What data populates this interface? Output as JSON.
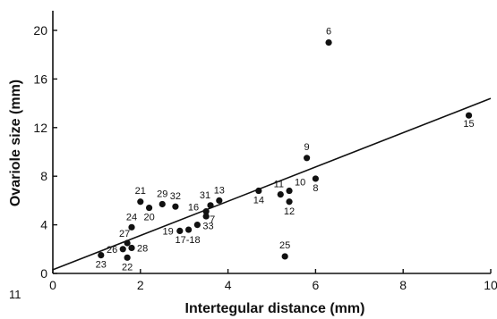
{
  "chart_data": {
    "type": "scatter",
    "title": "",
    "xlabel": "Intertegular distance (mm)",
    "ylabel": "Ovariole size (mm)",
    "xlim": [
      0,
      10
    ],
    "ylim": [
      0,
      22
    ],
    "x_ticks": [
      0,
      2,
      4,
      6,
      8,
      10
    ],
    "y_ticks": [
      0,
      4,
      8,
      12,
      16,
      20
    ],
    "grid": false,
    "legend": "none",
    "corner_label": "11",
    "points": [
      {
        "label": "6",
        "x": 6.3,
        "y": 19.0
      },
      {
        "label": "15",
        "x": 9.5,
        "y": 13.0
      },
      {
        "label": "9",
        "x": 5.8,
        "y": 9.5
      },
      {
        "label": "8",
        "x": 6.0,
        "y": 7.8
      },
      {
        "label": "10",
        "x": 5.4,
        "y": 6.8
      },
      {
        "label": "11",
        "x": 5.2,
        "y": 6.5
      },
      {
        "label": "12",
        "x": 5.4,
        "y": 5.9
      },
      {
        "label": "14",
        "x": 4.7,
        "y": 6.8
      },
      {
        "label": "13",
        "x": 3.8,
        "y": 6.0
      },
      {
        "label": "31",
        "x": 3.6,
        "y": 5.6
      },
      {
        "label": "16",
        "x": 3.5,
        "y": 5.1
      },
      {
        "label": "7",
        "x": 3.5,
        "y": 4.7
      },
      {
        "label": "33",
        "x": 3.3,
        "y": 4.0
      },
      {
        "label": "17-18",
        "x": 3.1,
        "y": 3.6
      },
      {
        "label": "19",
        "x": 2.9,
        "y": 3.5
      },
      {
        "label": "32",
        "x": 2.8,
        "y": 5.5
      },
      {
        "label": "29",
        "x": 2.5,
        "y": 5.7
      },
      {
        "label": "21",
        "x": 2.0,
        "y": 5.9
      },
      {
        "label": "20",
        "x": 2.2,
        "y": 5.4
      },
      {
        "label": "24",
        "x": 1.8,
        "y": 3.8
      },
      {
        "label": "27",
        "x": 1.7,
        "y": 2.5
      },
      {
        "label": "28",
        "x": 1.8,
        "y": 2.1
      },
      {
        "label": "26",
        "x": 1.6,
        "y": 2.0
      },
      {
        "label": "23",
        "x": 1.1,
        "y": 1.5
      },
      {
        "label": "22",
        "x": 1.7,
        "y": 1.3
      },
      {
        "label": "25",
        "x": 5.3,
        "y": 1.4
      }
    ],
    "regression_line": {
      "x": [
        0,
        10
      ],
      "y": [
        0.3,
        14.4
      ]
    }
  }
}
